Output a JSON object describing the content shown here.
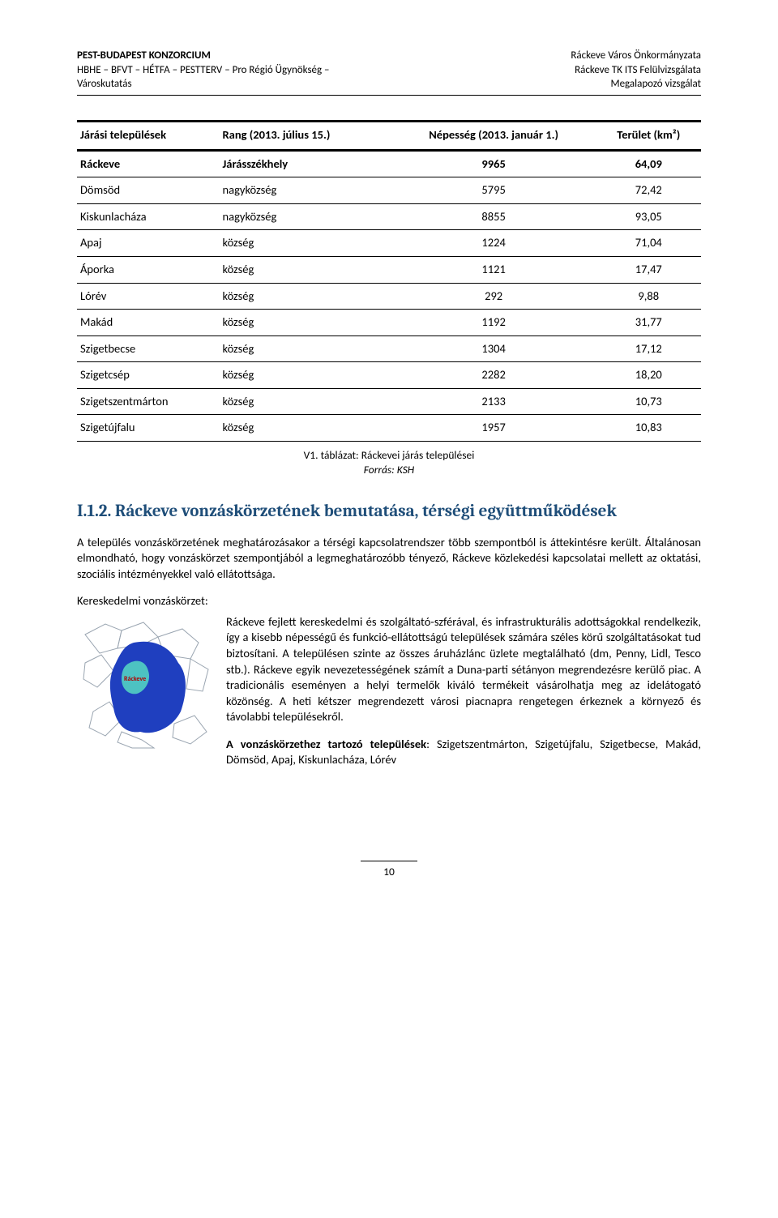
{
  "header": {
    "left_line1": "PEST-BUDAPEST KONZORCIUM",
    "left_line2": "HBHE – BFVT – HÉTFA – PESTTERV – Pro Régió Ügynökség –",
    "left_line3": "Városkutatás",
    "right_line1": "Ráckeve Város Önkormányzata",
    "right_line2": "Ráckeve TK ITS Felülvizsgálata",
    "right_line3": "Megalapozó vizsgálat"
  },
  "table": {
    "columns": [
      "Járási települések",
      "Rang (2013. július 15.)",
      "Népesség (2013. január 1.)",
      "Terület (km²)"
    ],
    "rows": [
      [
        "Ráckeve",
        "Járásszékhely",
        "9965",
        "64,09"
      ],
      [
        "Dömsöd",
        "nagyközség",
        "5795",
        "72,42"
      ],
      [
        "Kiskunlacháza",
        "nagyközség",
        "8855",
        "93,05"
      ],
      [
        "Apaj",
        "község",
        "1224",
        "71,04"
      ],
      [
        "Áporka",
        "község",
        "1121",
        "17,47"
      ],
      [
        "Lórév",
        "község",
        "292",
        "9,88"
      ],
      [
        "Makád",
        "község",
        "1192",
        "31,77"
      ],
      [
        "Szigetbecse",
        "község",
        "1304",
        "17,12"
      ],
      [
        "Szigetcsép",
        "község",
        "2282",
        "18,20"
      ],
      [
        "Szigetszentmárton",
        "község",
        "2133",
        "10,73"
      ],
      [
        "Szigetújfalu",
        "község",
        "1957",
        "10,83"
      ]
    ],
    "caption_line1": "V1. táblázat: Ráckevei járás települései",
    "caption_line2": "Forrás: KSH"
  },
  "section": {
    "number": "I.1.2.",
    "title": "Ráckeve vonzáskörzetének bemutatása, térségi együttműködések"
  },
  "para1": "A település vonzáskörzetének meghatározásakor a térségi kapcsolatrendszer több szempontból is áttekintésre került. Általánosan elmondható, hogy vonzáskörzet szempontjából a legmeghatározóbb tényező, Ráckeve közlekedési kapcsolatai mellett az oktatási, szociális intézményekkel való ellátottsága.",
  "subhead": "Kereskedelmi vonzáskörzet:",
  "para2": "Ráckeve fejlett kereskedelmi és szolgáltató-szférával, és infrastrukturális adottságokkal rendelkezik, így a kisebb népességű és funkció-ellátottságú települések számára széles körű szolgáltatásokat tud biztosítani. A településen szinte az összes áruházlánc üzlete megtalálható (dm, Penny, Lidl, Tesco stb.). Ráckeve egyik nevezetességének számít a Duna-parti sétányon megrendezésre kerülő piac. A tradicionális eseményen a helyi termelők kiváló termékeit vásárolhatja meg az idelátogató közönség. A heti kétszer megrendezett városi piacnapra rengetegen érkeznek a környező és távolabbi településekről.",
  "para3_label": "A vonzáskörzethez tartozó települések",
  "para3_rest": ": Szigetszentmárton, Szigetújfalu, Szigetbecse, Makád, Dömsöd, Apaj, Kiskunlacháza, Lórév",
  "map": {
    "label": "Ráckeve",
    "outline_color": "#9aa5b1",
    "inner_fill": "#4dc2c2",
    "main_fill": "#1f3fbf",
    "label_color": "#b00000",
    "background": "#ffffff"
  },
  "page_number": "10"
}
